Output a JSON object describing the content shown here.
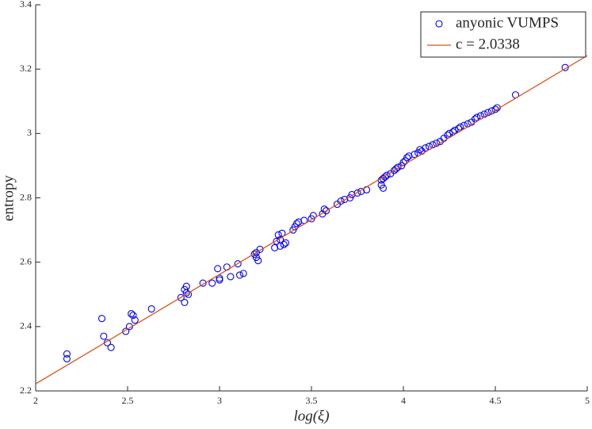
{
  "chart_data": {
    "type": "scatter",
    "x_label": "log(ξ)",
    "y_label": "entropy",
    "xlim": [
      2,
      5
    ],
    "ylim": [
      2.2,
      3.4
    ],
    "xticks": [
      2,
      2.5,
      3,
      3.5,
      4,
      4.5,
      5
    ],
    "yticks": [
      2.2,
      2.4,
      2.6,
      2.8,
      3,
      3.2,
      3.4
    ],
    "legend": "top-right",
    "series": [
      {
        "name": "anyonic VUMPS",
        "color": "#0000ff",
        "style": "markers",
        "x": [
          2.17,
          2.17,
          2.36,
          2.37,
          2.39,
          2.41,
          2.49,
          2.51,
          2.52,
          2.53,
          2.54,
          2.63,
          2.79,
          2.81,
          2.81,
          2.82,
          2.82,
          2.83,
          2.91,
          2.96,
          2.99,
          3.0,
          3.0,
          3.04,
          3.06,
          3.1,
          3.11,
          3.13,
          3.19,
          3.2,
          3.2,
          3.21,
          3.22,
          3.3,
          3.31,
          3.32,
          3.33,
          3.33,
          3.34,
          3.35,
          3.36,
          3.4,
          3.41,
          3.42,
          3.43,
          3.46,
          3.5,
          3.51,
          3.56,
          3.57,
          3.58,
          3.64,
          3.66,
          3.68,
          3.71,
          3.72,
          3.75,
          3.77,
          3.8,
          3.88,
          3.88,
          3.89,
          3.89,
          3.9,
          3.91,
          3.93,
          3.95,
          3.96,
          3.97,
          3.99,
          4.0,
          4.01,
          4.02,
          4.03,
          4.06,
          4.08,
          4.09,
          4.1,
          4.12,
          4.14,
          4.16,
          4.18,
          4.2,
          4.22,
          4.24,
          4.25,
          4.27,
          4.28,
          4.3,
          4.31,
          4.33,
          4.35,
          4.37,
          4.39,
          4.4,
          4.42,
          4.44,
          4.46,
          4.48,
          4.5,
          4.51,
          4.61,
          4.88
        ],
        "values": [
          2.315,
          2.3,
          2.425,
          2.37,
          2.35,
          2.335,
          2.385,
          2.4,
          2.44,
          2.435,
          2.42,
          2.455,
          2.49,
          2.475,
          2.515,
          2.525,
          2.505,
          2.5,
          2.535,
          2.535,
          2.58,
          2.545,
          2.55,
          2.585,
          2.555,
          2.595,
          2.56,
          2.565,
          2.625,
          2.615,
          2.63,
          2.605,
          2.64,
          2.645,
          2.665,
          2.685,
          2.65,
          2.67,
          2.69,
          2.655,
          2.66,
          2.7,
          2.71,
          2.72,
          2.725,
          2.73,
          2.735,
          2.745,
          2.75,
          2.765,
          2.76,
          2.78,
          2.79,
          2.795,
          2.8,
          2.81,
          2.815,
          2.82,
          2.825,
          2.84,
          2.855,
          2.83,
          2.86,
          2.865,
          2.87,
          2.875,
          2.885,
          2.89,
          2.895,
          2.9,
          2.91,
          2.915,
          2.925,
          2.93,
          2.935,
          2.94,
          2.95,
          2.945,
          2.955,
          2.96,
          2.965,
          2.97,
          2.975,
          2.985,
          2.995,
          3.0,
          3.005,
          3.01,
          3.015,
          3.02,
          3.025,
          3.03,
          3.035,
          3.045,
          3.05,
          3.055,
          3.06,
          3.065,
          3.07,
          3.075,
          3.08,
          3.12,
          3.205
        ]
      },
      {
        "name": "c = 2.0338",
        "color": "#d95319",
        "style": "line",
        "x": [
          2,
          5
        ],
        "values": [
          2.222,
          3.242
        ]
      }
    ]
  }
}
